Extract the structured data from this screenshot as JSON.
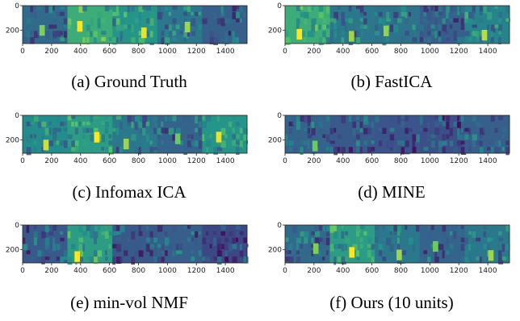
{
  "figure": {
    "panels": [
      {
        "letter": "(a)",
        "label": "Ground Truth",
        "brightness": [
          0.35,
          0.62,
          0.52,
          0.4,
          0.3
        ]
      },
      {
        "letter": "(b)",
        "label": "FastICA",
        "brightness": [
          0.62,
          0.4,
          0.38,
          0.3,
          0.45
        ]
      },
      {
        "letter": "(c)",
        "label": "Infomax ICA",
        "brightness": [
          0.48,
          0.55,
          0.4,
          0.32,
          0.52
        ]
      },
      {
        "letter": "(d)",
        "label": "MINE",
        "brightness": [
          0.32,
          0.28,
          0.26,
          0.24,
          0.3
        ]
      },
      {
        "letter": "(e)",
        "label": "min-vol NMF",
        "brightness": [
          0.28,
          0.55,
          0.28,
          0.3,
          0.22
        ]
      },
      {
        "letter": "(f)",
        "label": "Ours (10 units)",
        "brightness": [
          0.35,
          0.55,
          0.4,
          0.32,
          0.4
        ]
      }
    ],
    "axes": {
      "x_ticks": [
        "0",
        "200",
        "400",
        "600",
        "800",
        "1000",
        "1200",
        "1400"
      ],
      "x_values": [
        0,
        200,
        400,
        600,
        800,
        1000,
        1200,
        1400
      ],
      "x_range": [
        0,
        1550
      ],
      "y_ticks": [
        "0",
        "200"
      ],
      "y_values": [
        0,
        200
      ],
      "y_range": [
        0,
        310
      ]
    },
    "colormap": [
      "#440154",
      "#3b528b",
      "#21918c",
      "#5ec962",
      "#fde725"
    ]
  }
}
